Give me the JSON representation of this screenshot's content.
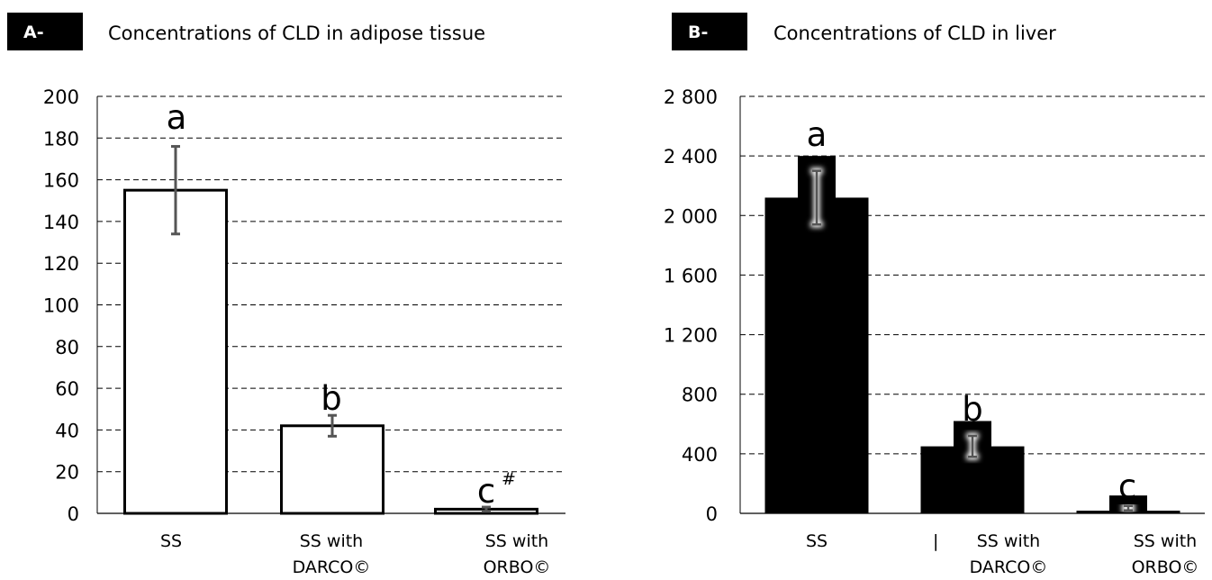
{
  "panels": [
    {
      "badge": "A-",
      "title": "Concentrations of CLD in adipose tissue"
    },
    {
      "badge": "B-",
      "title": "Concentrations of CLD in liver"
    }
  ],
  "colors": {
    "badge": "#000000",
    "panelA_bar_fill": "#ffffff",
    "panelA_bar_stroke": "#000000",
    "panelA_errorbar": "#555555",
    "panelB_bar_fill": "#000000",
    "panelB_errorbar": "#ffffff",
    "grid": "#000000"
  },
  "chart_data": [
    {
      "type": "bar",
      "title": "Concentrations of CLD in adipose tissue",
      "categories": [
        [
          "SS"
        ],
        [
          "SS with",
          "DARCO©"
        ],
        [
          "SS with",
          "ORBO©"
        ]
      ],
      "values": [
        155,
        42,
        2
      ],
      "error_low": [
        134,
        37,
        1
      ],
      "error_high": [
        176,
        47,
        3
      ],
      "significance_labels": [
        "a",
        "b",
        "c"
      ],
      "significance_suffix": [
        "",
        "",
        "#"
      ],
      "yticks": [
        "0",
        "20",
        "40",
        "60",
        "80",
        "100",
        "120",
        "140",
        "160",
        "180",
        "200"
      ],
      "ylim": [
        0,
        200
      ],
      "grid": "dashed horizontal",
      "legend": "none"
    },
    {
      "type": "bar",
      "title": "Concentrations of CLD in liver",
      "categories": [
        [
          "SS"
        ],
        [
          "SS with",
          "DARCO©"
        ],
        [
          "SS with",
          "ORBO©"
        ]
      ],
      "values": [
        2120,
        450,
        15
      ],
      "overlay_values": [
        2400,
        620,
        120
      ],
      "error_low": [
        1940,
        380,
        20
      ],
      "error_high": [
        2300,
        520,
        50
      ],
      "significance_labels": [
        "a",
        "b",
        "c"
      ],
      "yticks": [
        "0",
        "400",
        "800",
        "1 200",
        "1 600",
        "2 000",
        "2 400",
        "2 800"
      ],
      "ylim": [
        0,
        2800
      ],
      "grid": "dashed horizontal",
      "legend": "none",
      "stray_mark": "|"
    }
  ]
}
